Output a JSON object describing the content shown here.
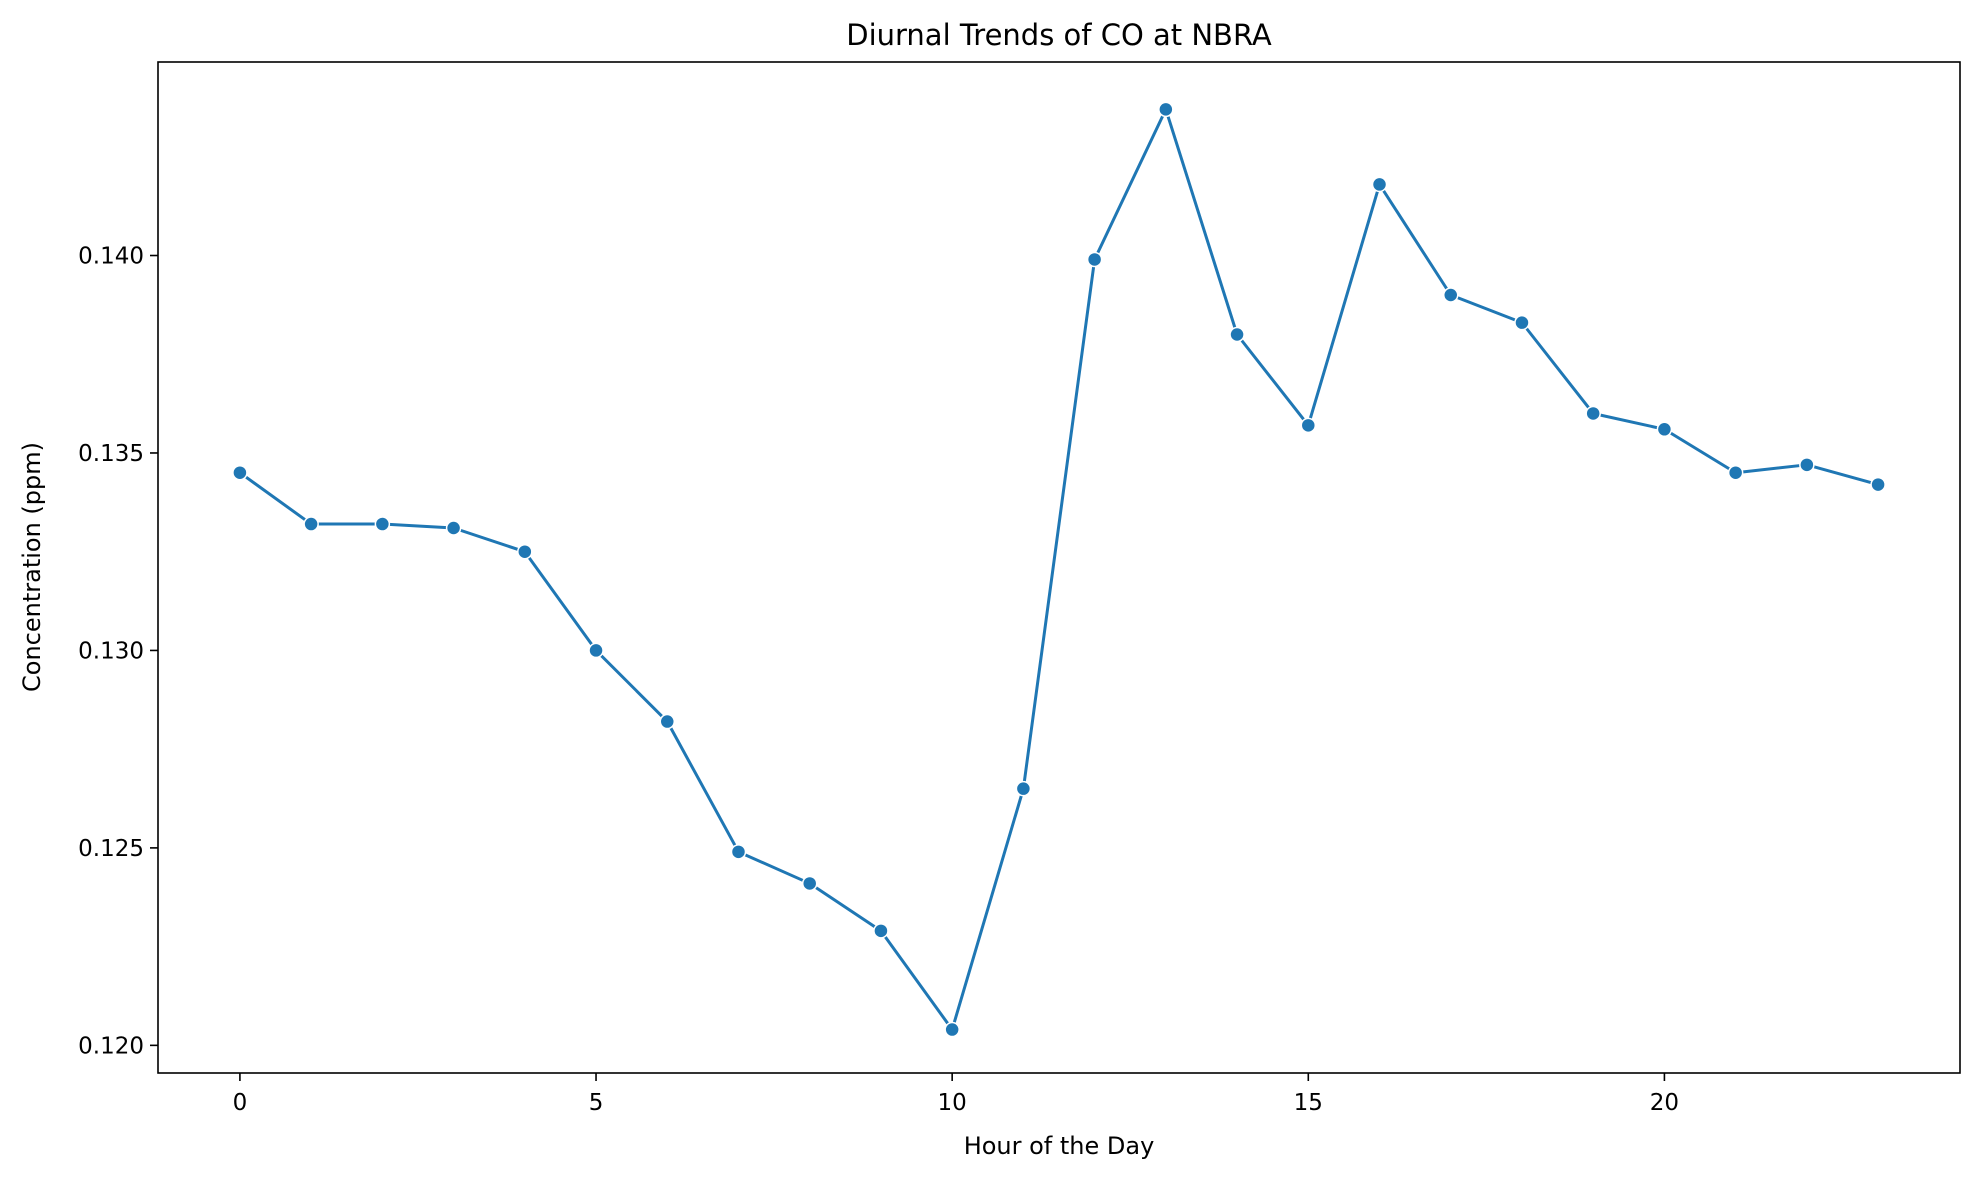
{
  "chart_data": {
    "type": "line",
    "title": "Diurnal Trends of CO at NBRA",
    "xlabel": "Hour of the Day",
    "ylabel": "Concentration (ppm)",
    "x": [
      0,
      1,
      2,
      3,
      4,
      5,
      6,
      7,
      8,
      9,
      10,
      11,
      12,
      13,
      14,
      15,
      16,
      17,
      18,
      19,
      20,
      21,
      22,
      23
    ],
    "series": [
      {
        "values": [
          0.1345,
          0.1332,
          0.1332,
          0.1331,
          0.1325,
          0.13,
          0.1282,
          0.1249,
          0.1241,
          0.1229,
          0.1204,
          0.1265,
          0.1399,
          0.1437,
          0.138,
          0.1357,
          0.1418,
          0.139,
          0.1383,
          0.136,
          0.1356,
          0.1345,
          0.1347,
          0.1342
        ],
        "color": "#1f77b4"
      }
    ],
    "xticks": [
      0,
      5,
      10,
      15,
      20
    ],
    "xtick_labels": [
      "0",
      "5",
      "10",
      "15",
      "20"
    ],
    "yticks": [
      0.12,
      0.125,
      0.13,
      0.135,
      0.14
    ],
    "ytick_labels": [
      "0.120",
      "0.125",
      "0.130",
      "0.135",
      "0.140"
    ],
    "xlim": [
      -1.15,
      24.15
    ],
    "ylim": [
      0.1193,
      0.1449
    ],
    "grid": false,
    "legend": "none"
  }
}
